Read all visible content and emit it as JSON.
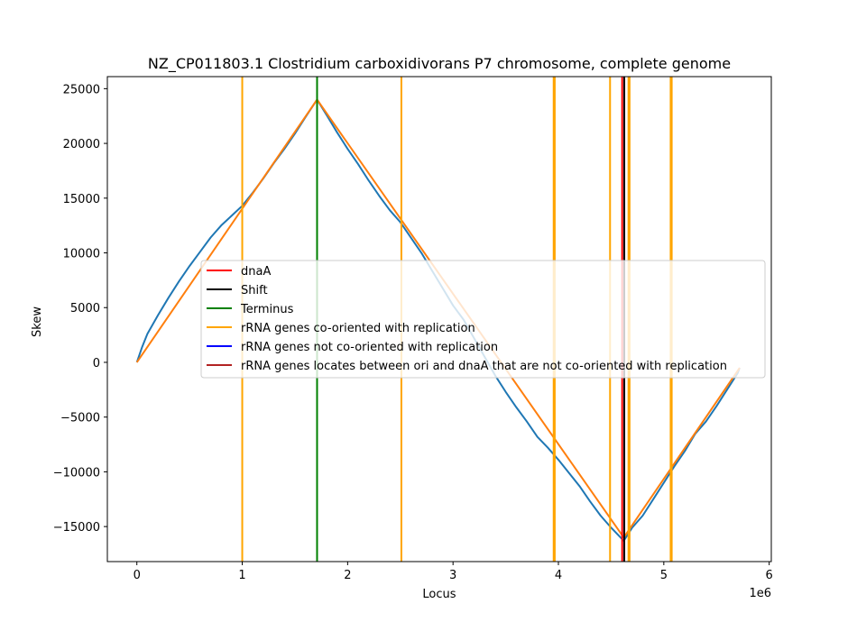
{
  "chart_data": {
    "type": "line",
    "title": "NZ_CP011803.1 Clostridium carboxidivorans P7 chromosome, complete genome",
    "xlabel": "Locus",
    "ylabel": "Skew",
    "x_offset_label": "1e6",
    "xlim": [
      -0.28,
      6.02
    ],
    "ylim": [
      -18200,
      26100
    ],
    "xticks": [
      0,
      1,
      2,
      3,
      4,
      5,
      6
    ],
    "xtick_labels": [
      "0",
      "1",
      "2",
      "3",
      "4",
      "5",
      "6"
    ],
    "yticks": [
      -15000,
      -10000,
      -5000,
      0,
      5000,
      10000,
      15000,
      20000,
      25000
    ],
    "ytick_labels": [
      "−15000",
      "−10000",
      "−5000",
      "0",
      "5000",
      "10000",
      "15000",
      "20000",
      "25000"
    ],
    "grid": false,
    "legend_position": "center-right",
    "legend": [
      {
        "label": "dnaA",
        "color": "#ff0000"
      },
      {
        "label": "Shift",
        "color": "#000000"
      },
      {
        "label": "Terminus",
        "color": "#008000"
      },
      {
        "label": "rRNA genes co-oriented with replication",
        "color": "#ffa500"
      },
      {
        "label": "rRNA genes not co-oriented with replication",
        "color": "#0000ff"
      },
      {
        "label": "rRNA genes locates between ori and dnaA that are not co-oriented with replication",
        "color": "#b22222"
      }
    ],
    "series": [
      {
        "color": "#1f77b4",
        "x": [
          0,
          0.05,
          0.1,
          0.2,
          0.3,
          0.4,
          0.5,
          0.6,
          0.7,
          0.8,
          0.9,
          1.0,
          1.1,
          1.2,
          1.3,
          1.4,
          1.5,
          1.6,
          1.71,
          1.8,
          1.9,
          2.0,
          2.1,
          2.2,
          2.3,
          2.4,
          2.5,
          2.6,
          2.7,
          2.8,
          2.9,
          3.0,
          3.1,
          3.2,
          3.3,
          3.4,
          3.5,
          3.6,
          3.7,
          3.8,
          3.9,
          4.0,
          4.1,
          4.2,
          4.3,
          4.4,
          4.5,
          4.62,
          4.7,
          4.8,
          4.9,
          5.0,
          5.1,
          5.2,
          5.3,
          5.4,
          5.5,
          5.6,
          5.7,
          5.72
        ],
        "y": [
          0,
          1400,
          2600,
          4300,
          5900,
          7400,
          8800,
          10100,
          11400,
          12500,
          13400,
          14300,
          15500,
          16800,
          18200,
          19500,
          20900,
          22400,
          24000,
          22600,
          21000,
          19500,
          18100,
          16600,
          15200,
          13900,
          12800,
          11400,
          10000,
          8400,
          6800,
          5200,
          3900,
          2200,
          500,
          -1200,
          -2700,
          -4100,
          -5400,
          -6800,
          -7800,
          -8900,
          -10100,
          -11300,
          -12700,
          -14000,
          -15100,
          -16300,
          -15100,
          -14000,
          -12500,
          -11000,
          -9500,
          -8100,
          -6500,
          -5400,
          -4000,
          -2500,
          -1000,
          -500
        ]
      },
      {
        "color": "#ff7f0e",
        "x": [
          0,
          1.71,
          4.62,
          5.72
        ],
        "y": [
          0,
          24000,
          -16000,
          -500
        ]
      }
    ],
    "vertical_lines": [
      {
        "x": 1.0,
        "color": "#ffa500",
        "kind": "rRNA genes co-oriented with replication"
      },
      {
        "x": 2.51,
        "color": "#ffa500",
        "kind": "rRNA genes co-oriented with replication"
      },
      {
        "x": 3.955,
        "color": "#ffa500",
        "kind": "rRNA genes co-oriented with replication"
      },
      {
        "x": 3.965,
        "color": "#ffa500",
        "kind": "rRNA genes co-oriented with replication"
      },
      {
        "x": 4.49,
        "color": "#ffa500",
        "kind": "rRNA genes co-oriented with replication"
      },
      {
        "x": 4.665,
        "color": "#ffa500",
        "kind": "rRNA genes co-oriented with replication"
      },
      {
        "x": 4.675,
        "color": "#ffa500",
        "kind": "rRNA genes co-oriented with replication"
      },
      {
        "x": 5.065,
        "color": "#ffa500",
        "kind": "rRNA genes co-oriented with replication"
      },
      {
        "x": 5.075,
        "color": "#ffa500",
        "kind": "rRNA genes co-oriented with replication"
      },
      {
        "x": 1.71,
        "color": "#008000",
        "kind": "Terminus"
      },
      {
        "x": 4.605,
        "color": "#ff0000",
        "kind": "dnaA"
      },
      {
        "x": 4.625,
        "color": "#000000",
        "kind": "Shift"
      }
    ]
  }
}
